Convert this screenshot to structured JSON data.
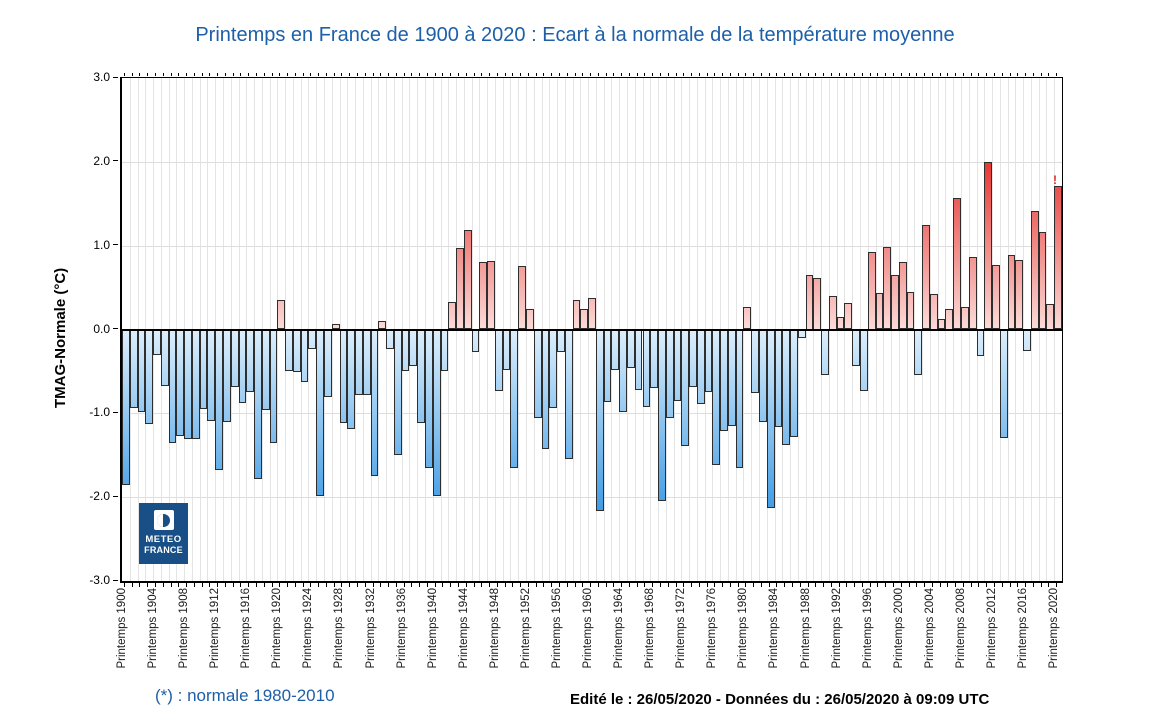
{
  "title": "Printemps en France de 1900 à 2020 : Ecart à la normale de la température moyenne",
  "y_axis": {
    "label": "TMAG-Normale (°C)",
    "ticks": [
      "3.0",
      "2.0",
      "1.0",
      "0.0",
      "-1.0",
      "-2.0",
      "-3.0"
    ],
    "min": -3.0,
    "max": 3.0
  },
  "x_axis": {
    "tick_labels": [
      "Printemps 1900",
      "Printemps 1904",
      "Printemps 1908",
      "Printemps 1912",
      "Printemps 1916",
      "Printemps 1920",
      "Printemps 1924",
      "Printemps 1928",
      "Printemps 1932",
      "Printemps 1936",
      "Printemps 1940",
      "Printemps 1944",
      "Printemps 1948",
      "Printemps 1952",
      "Printemps 1956",
      "Printemps 1960",
      "Printemps 1964",
      "Printemps 1968",
      "Printemps 1972",
      "Printemps 1976",
      "Printemps 1980",
      "Printemps 1984",
      "Printemps 1988",
      "Printemps 1992",
      "Printemps 1996",
      "Printemps 2000",
      "Printemps 2004",
      "Printemps 2008",
      "Printemps 2012",
      "Printemps 2016",
      "Printemps 2020"
    ],
    "label_prefix": "Printemps",
    "label_every_years": 4
  },
  "logo": {
    "line1": "METEO",
    "line2": "FRANCE",
    "color": "#174f86"
  },
  "footnote": "(*) : normale 1980-2010",
  "edit_note": "Edité le : 26/05/2020 - Données du : 26/05/2020 à 09:09 UTC",
  "annotation": {
    "text": "!",
    "year": 2020
  },
  "colors": {
    "title_blue": "#1d5fa8",
    "warm_strong": "#e5312d",
    "warm_pale": "#fbdad7",
    "cold_strong": "#3e9be5",
    "cold_pale": "#dceefb",
    "bar_border": "#2e2e2e",
    "grid": "#e4e4e4",
    "logo_blue": "#174f86",
    "marker_red": "#e02b25"
  },
  "chart_data": {
    "type": "bar",
    "title": "Printemps en France de 1900 à 2020 : Ecart à la normale de la température moyenne",
    "xlabel": "",
    "ylabel": "TMAG-Normale (°C)",
    "ylim": [
      -3.0,
      3.0
    ],
    "grid": true,
    "year_start": 1900,
    "year_end": 2020,
    "values": [
      -1.85,
      -0.93,
      -0.98,
      -1.13,
      -0.3,
      -0.67,
      -1.35,
      -1.27,
      -1.31,
      -1.31,
      -0.95,
      -1.09,
      -1.67,
      -1.1,
      -0.68,
      -0.88,
      -0.74,
      -1.78,
      -0.96,
      -1.35,
      0.35,
      -0.49,
      -0.51,
      -0.63,
      -0.23,
      -1.99,
      -0.8,
      0.07,
      -1.11,
      -1.19,
      -0.78,
      -0.78,
      -1.75,
      0.1,
      -0.23,
      -1.5,
      -0.5,
      -0.44,
      -1.12,
      -1.65,
      -1.98,
      -0.5,
      0.33,
      0.97,
      1.19,
      -0.27,
      0.8,
      0.82,
      -0.73,
      -0.48,
      -1.65,
      0.76,
      0.25,
      -1.05,
      -1.43,
      -0.94,
      -0.27,
      -1.54,
      0.35,
      0.24,
      0.38,
      -2.17,
      -0.87,
      -0.48,
      -0.98,
      -0.46,
      -0.72,
      -0.92,
      -0.7,
      -2.04,
      -1.06,
      -0.85,
      -1.39,
      -0.68,
      -0.89,
      -0.74,
      -1.61,
      -1.21,
      -1.15,
      -1.65,
      0.27,
      -0.76,
      -1.1,
      -2.13,
      -1.16,
      -1.38,
      -1.28,
      -0.1,
      0.65,
      0.62,
      -0.54,
      0.4,
      0.15,
      0.32,
      -0.43,
      -0.73,
      0.93,
      0.44,
      0.98,
      0.65,
      0.8,
      0.45,
      -0.54,
      1.25,
      0.43,
      0.13,
      0.25,
      1.57,
      0.27,
      0.86,
      -0.32,
      2.0,
      0.77,
      -1.29,
      0.89,
      0.83,
      -0.25,
      1.41,
      1.16,
      0.31,
      1.71
    ]
  }
}
